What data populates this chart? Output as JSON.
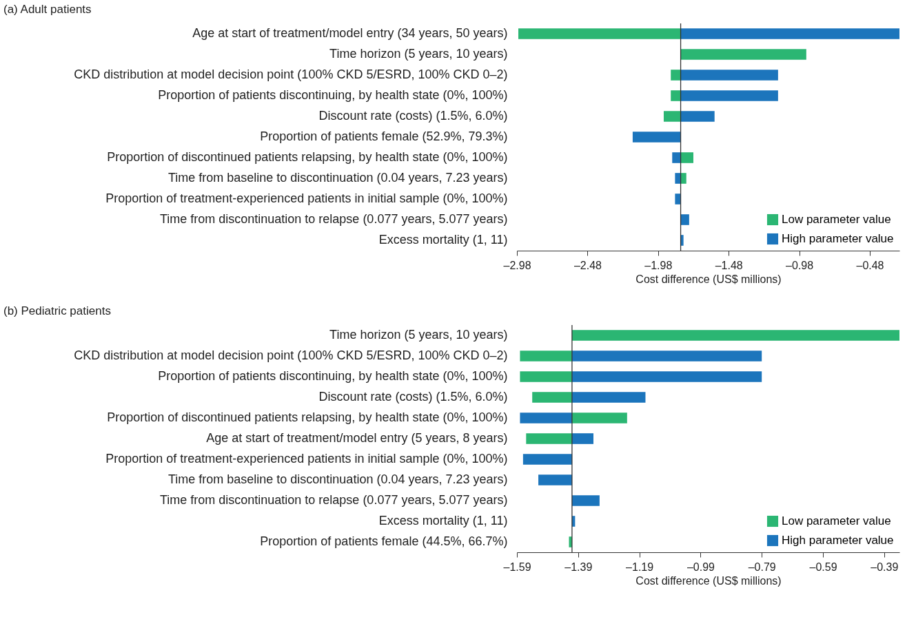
{
  "chart_data": [
    {
      "type": "bar",
      "orientation": "horizontal",
      "title": "(a) Adult patients",
      "xlabel": "Cost difference (US$ millions)",
      "categories": [
        "Age at start of treatment/model entry (34 years, 50 years)",
        "Time horizon (5 years, 10 years)",
        "CKD distribution at model decision point (100% CKD 5/ESRD, 100% CKD 0–2)",
        "Proportion of patients discontinuing, by health state (0%, 100%)",
        "Discount rate (costs) (1.5%, 6.0%)",
        "Proportion of patients female (52.9%, 79.3%)",
        "Proportion of discontinued patients relapsing, by health state (0%, 100%)",
        "Time from baseline to discontinuation (0.04 years, 7.23 years)",
        "Proportion of treatment-experienced patients in initial sample (0%, 100%)",
        "Time from discontinuation to relapse (0.077 years, 5.077 years)",
        "Excess mortality (1, 11)"
      ],
      "series": [
        {
          "name": "Low parameter value",
          "color": "#2bb673",
          "base": [
            -1.82,
            -1.82,
            -1.82,
            -1.82,
            -1.82,
            null,
            -1.82,
            -1.82,
            null,
            null,
            null
          ],
          "values": [
            -1.15,
            0.89,
            -0.07,
            -0.07,
            -0.12,
            null,
            0.09,
            0.04,
            null,
            null,
            null
          ]
        },
        {
          "name": "High parameter value",
          "color": "#1c75bc",
          "base": [
            -1.82,
            null,
            -1.82,
            -1.82,
            -1.82,
            -1.82,
            -1.82,
            -1.82,
            -1.82,
            -1.82,
            -1.82
          ],
          "values": [
            1.55,
            null,
            0.69,
            0.69,
            0.24,
            -0.34,
            -0.06,
            -0.04,
            -0.04,
            0.06,
            0.02
          ]
        }
      ],
      "xlim": [
        -2.98,
        -0.27
      ],
      "xticks": [
        {
          "value": -2.98,
          "label": "–2.98"
        },
        {
          "value": -2.48,
          "label": "–2.48"
        },
        {
          "value": -1.98,
          "label": "–1.98"
        },
        {
          "value": -1.48,
          "label": "–1.48"
        },
        {
          "value": -0.98,
          "label": "–0.98"
        },
        {
          "value": -0.48,
          "label": "–0.48"
        }
      ],
      "ref_lines": [
        {
          "axis": "x",
          "value": -1.82,
          "label": null,
          "color": "#333333"
        }
      ],
      "legend": "bottom right",
      "grid": false
    },
    {
      "type": "bar",
      "orientation": "horizontal",
      "title": "(b) Pediatric patients",
      "xlabel": "Cost difference (US$ millions)",
      "categories": [
        "Time horizon (5 years, 10 years)",
        "CKD distribution at model decision point (100% CKD 5/ESRD, 100% CKD 0–2)",
        "Proportion of patients discontinuing, by health state (0%, 100%)",
        "Discount rate (costs) (1.5%, 6.0%)",
        "Proportion of discontinued patients relapsing, by health state (0%, 100%)",
        "Age at start of treatment/model entry (5 years, 8 years)",
        "Proportion of treatment-experienced patients in initial sample (0%, 100%)",
        "Time from baseline to discontinuation (0.04 years, 7.23 years)",
        "Time from discontinuation to relapse (0.077 years, 5.077 years)",
        "Excess mortality (1, 11)",
        "Proportion of patients female (44.5%, 66.7%)"
      ],
      "series": [
        {
          "name": "Low parameter value",
          "color": "#2bb673",
          "base": [
            -1.41,
            -1.41,
            -1.41,
            -1.41,
            -1.41,
            -1.41,
            null,
            null,
            null,
            null,
            -1.41
          ],
          "values": [
            1.07,
            -0.17,
            -0.17,
            -0.13,
            0.18,
            -0.15,
            null,
            null,
            null,
            null,
            -0.01
          ]
        },
        {
          "name": "High parameter value",
          "color": "#1c75bc",
          "base": [
            null,
            -1.41,
            -1.41,
            -1.41,
            -1.41,
            -1.41,
            -1.41,
            -1.41,
            -1.41,
            -1.41,
            null
          ],
          "values": [
            null,
            0.62,
            0.62,
            0.24,
            -0.17,
            0.07,
            -0.16,
            -0.11,
            0.09,
            0.01,
            null
          ]
        }
      ],
      "xlim": [
        -1.59,
        -0.34
      ],
      "xticks": [
        {
          "value": -1.59,
          "label": "–1.59"
        },
        {
          "value": -1.39,
          "label": "–1.39"
        },
        {
          "value": -1.19,
          "label": "–1.19"
        },
        {
          "value": -0.99,
          "label": "–0.99"
        },
        {
          "value": -0.79,
          "label": "–0.79"
        },
        {
          "value": -0.59,
          "label": "–0.59"
        },
        {
          "value": -0.39,
          "label": "–0.39"
        }
      ],
      "ref_lines": [
        {
          "axis": "x",
          "value": -1.41,
          "label": null,
          "color": "#333333"
        }
      ],
      "legend": "bottom right",
      "grid": false
    }
  ]
}
